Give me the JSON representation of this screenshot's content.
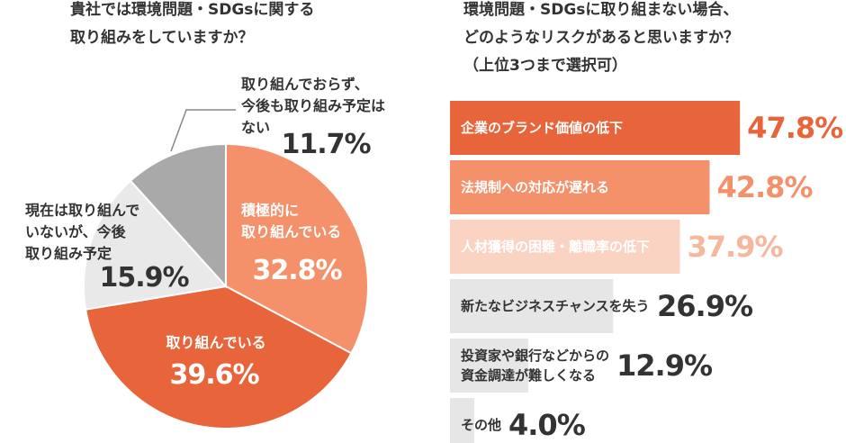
{
  "chart_data": [
    {
      "type": "pie",
      "title": "貴社では環境問題・SDGsに関する\n取り組みをしていますか？",
      "categories": [
        "積極的に\n取り組んでいる",
        "取り組んでいる",
        "現在は取り組んで\nいないが、今後\n取り組み予定",
        "取り組んでおらず、\n今後も取り組み予定は\nない"
      ],
      "values": [
        32.8,
        39.6,
        15.9,
        11.7
      ],
      "value_labels": [
        "32.8%",
        "39.6%",
        "15.9%",
        "11.7%"
      ],
      "colors": [
        "#f4906a",
        "#e8643a",
        "#e9e9e9",
        "#a9a9a9"
      ],
      "label_colors": [
        "#ffffff",
        "#ffffff",
        "#333333",
        "#333333"
      ]
    },
    {
      "type": "bar",
      "orientation": "horizontal",
      "title": "環境問題・SDGsに取り組まない場合、\nどのようなリスクがあると思いますか？\n（上位3つまで選択可）",
      "categories": [
        "企業のブランド価値の低下",
        "法規制への対応が遅れる",
        "人材獲得の困難・離職率の低下",
        "新たなビジネスチャンスを失う",
        "投資家や銀行などからの\n資金調達が難しくなる",
        "その他"
      ],
      "values": [
        47.8,
        42.8,
        37.9,
        26.9,
        12.9,
        4.0
      ],
      "value_labels": [
        "47.8%",
        "42.8%",
        "37.9%",
        "26.9%",
        "12.9%",
        "4.0%"
      ],
      "colors": [
        "#e8643a",
        "#f4906a",
        "#fbd3c3",
        "#e6e6e6",
        "#e6e6e6",
        "#e6e6e6"
      ],
      "label_colors": [
        "#ffffff",
        "#ffffff",
        "#ffffff",
        "#333333",
        "#333333",
        "#333333"
      ],
      "value_label_colors": [
        "#e8643a",
        "#f4906a",
        "#f7b79c",
        "#333333",
        "#333333",
        "#333333"
      ]
    }
  ]
}
